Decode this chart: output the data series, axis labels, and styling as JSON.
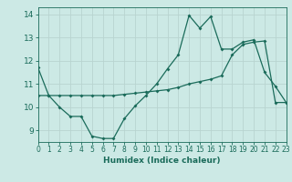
{
  "xlabel": "Humidex (Indice chaleur)",
  "bg_color": "#cce9e5",
  "grid_color": "#b8d4d0",
  "line_color": "#1a6b5a",
  "x_min": 0,
  "x_max": 23,
  "y_min": 8.5,
  "y_max": 14.3,
  "yticks": [
    9,
    10,
    11,
    12,
    13,
    14
  ],
  "xticks": [
    0,
    1,
    2,
    3,
    4,
    5,
    6,
    7,
    8,
    9,
    10,
    11,
    12,
    13,
    14,
    15,
    16,
    17,
    18,
    19,
    20,
    21,
    22,
    23
  ],
  "line1_x": [
    0,
    1,
    2,
    3,
    4,
    5,
    6,
    7,
    8,
    9,
    10,
    11,
    12,
    13,
    14,
    15,
    16,
    17,
    18,
    19,
    20,
    21,
    22,
    23
  ],
  "line1_y": [
    11.7,
    10.5,
    10.0,
    9.6,
    9.6,
    8.75,
    8.65,
    8.65,
    9.5,
    10.05,
    10.5,
    11.0,
    11.65,
    12.25,
    13.95,
    13.4,
    13.9,
    12.5,
    12.5,
    12.8,
    12.9,
    11.5,
    10.9,
    10.2
  ],
  "line2_x": [
    0,
    1,
    2,
    3,
    4,
    5,
    6,
    7,
    8,
    9,
    10,
    11,
    12,
    13,
    14,
    15,
    16,
    17,
    18,
    19,
    20,
    21,
    22,
    23
  ],
  "line2_y": [
    10.5,
    10.5,
    10.5,
    10.5,
    10.5,
    10.5,
    10.5,
    10.5,
    10.55,
    10.6,
    10.65,
    10.7,
    10.75,
    10.85,
    11.0,
    11.1,
    11.2,
    11.35,
    12.25,
    12.7,
    12.8,
    12.85,
    10.2,
    10.2
  ]
}
